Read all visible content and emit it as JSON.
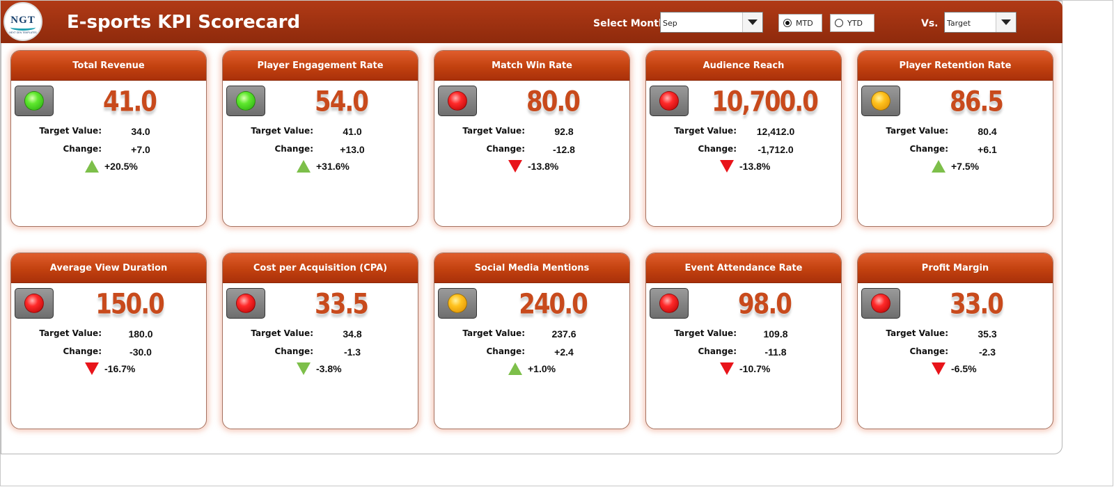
{
  "header": {
    "logo_text": "NGT",
    "logo_subtext": "NEXT GEN TEMPLATES",
    "title": "E-sports KPI Scorecard",
    "select_month_label": "Select Month",
    "month_value": "Sep",
    "radio_mtd": "MTD",
    "radio_ytd": "YTD",
    "radio_selected": "MTD",
    "vs_label": "Vs.",
    "vs_value": "Target"
  },
  "labels": {
    "target": "Target Value:",
    "change": "Change:"
  },
  "colors": {
    "accent": "#c84a1c",
    "header": "#a33210",
    "up": "#7dbf4a",
    "down": "#e8141a"
  },
  "cards": [
    {
      "title": "Total Revenue",
      "light": "green",
      "value": "41.0",
      "target": "34.0",
      "change": "+7.0",
      "pct": "+20.5%",
      "trend": "up"
    },
    {
      "title": "Player Engagement Rate",
      "light": "green",
      "value": "54.0",
      "target": "41.0",
      "change": "+13.0",
      "pct": "+31.6%",
      "trend": "up"
    },
    {
      "title": "Match Win Rate",
      "light": "red",
      "value": "80.0",
      "target": "92.8",
      "change": "-12.8",
      "pct": "-13.8%",
      "trend": "down"
    },
    {
      "title": "Audience Reach",
      "light": "red",
      "value": "10,700.0",
      "target": "12,412.0",
      "change": "-1,712.0",
      "pct": "-13.8%",
      "trend": "down"
    },
    {
      "title": "Player Retention Rate",
      "light": "yellow",
      "value": "86.5",
      "target": "80.4",
      "change": "+6.1",
      "pct": "+7.5%",
      "trend": "up"
    },
    {
      "title": "Average View Duration",
      "light": "red",
      "value": "150.0",
      "target": "180.0",
      "change": "-30.0",
      "pct": "-16.7%",
      "trend": "down"
    },
    {
      "title": "Cost per Acquisition (CPA)",
      "light": "red",
      "value": "33.5",
      "target": "34.8",
      "change": "-1.3",
      "pct": "-3.8%",
      "trend": "down-green"
    },
    {
      "title": "Social Media Mentions",
      "light": "yellow",
      "value": "240.0",
      "target": "237.6",
      "change": "+2.4",
      "pct": "+1.0%",
      "trend": "up"
    },
    {
      "title": "Event Attendance Rate",
      "light": "red",
      "value": "98.0",
      "target": "109.8",
      "change": "-11.8",
      "pct": "-10.7%",
      "trend": "down"
    },
    {
      "title": "Profit Margin",
      "light": "red",
      "value": "33.0",
      "target": "35.3",
      "change": "-2.3",
      "pct": "-6.5%",
      "trend": "down"
    }
  ]
}
